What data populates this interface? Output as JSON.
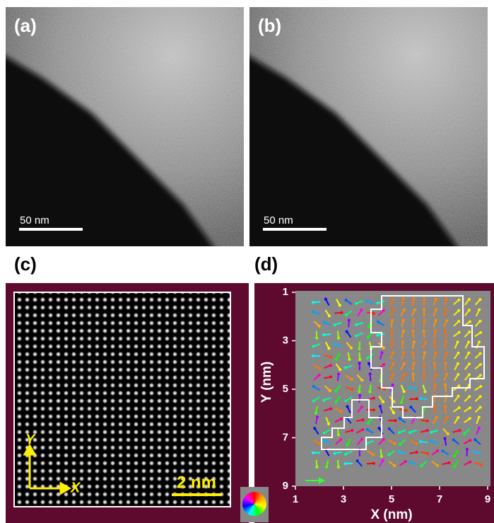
{
  "panels": {
    "a": {
      "label": "(a)",
      "scale_bar": "50 nm"
    },
    "b": {
      "label": "(b)",
      "scale_bar": "50 nm"
    },
    "c": {
      "label": "(c)",
      "scale_bar": "2 nm",
      "axis_x": "X",
      "axis_y": "Y"
    },
    "d": {
      "label": "(d)"
    }
  },
  "chart_data": {
    "type": "vector-field",
    "x_label": "X (nm)",
    "y_label": "Y (nm)",
    "xlim": [
      1,
      9
    ],
    "ylim": [
      1,
      9
    ],
    "y_inverted": true,
    "xticks": [
      1,
      3,
      5,
      7,
      9
    ],
    "yticks": [
      1,
      3,
      5,
      7,
      9
    ]
  }
}
